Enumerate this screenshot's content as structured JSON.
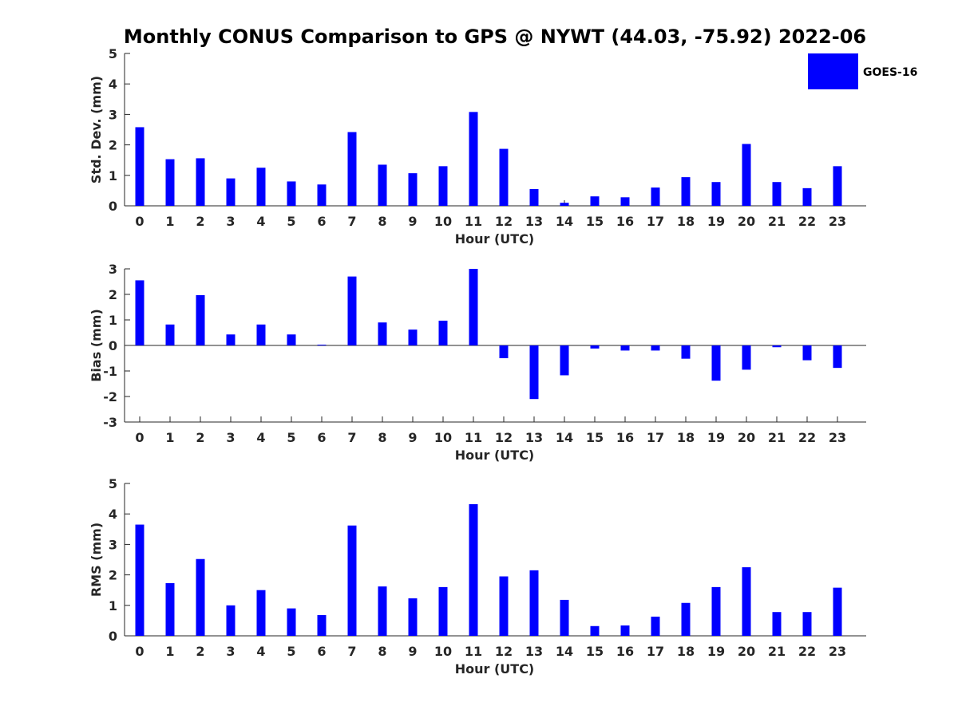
{
  "title": "Monthly CONUS Comparison to GPS @ NYWT (44.03, -75.92) 2022-06",
  "colors": {
    "bar": "#0000FF",
    "axis": "#262626",
    "background": "#FFFFFF"
  },
  "legend": {
    "label": "GOES-16",
    "placement": "top-right"
  },
  "chart_data": [
    {
      "type": "bar",
      "title": "",
      "xlabel": "Hour (UTC)",
      "ylabel": "Std. Dev. (mm)",
      "categories": [
        "0",
        "1",
        "2",
        "3",
        "4",
        "5",
        "6",
        "7",
        "8",
        "9",
        "10",
        "11",
        "12",
        "13",
        "14",
        "15",
        "16",
        "17",
        "18",
        "19",
        "20",
        "21",
        "22",
        "23"
      ],
      "series": [
        {
          "name": "GOES-16",
          "values": [
            2.58,
            1.53,
            1.56,
            0.9,
            1.25,
            0.8,
            0.7,
            2.42,
            1.35,
            1.07,
            1.3,
            3.08,
            1.87,
            0.55,
            0.1,
            0.31,
            0.28,
            0.6,
            0.94,
            0.78,
            2.03,
            0.78,
            0.58,
            1.3
          ]
        }
      ],
      "ylim": [
        0,
        5
      ],
      "yticks": [
        "0",
        "1",
        "2",
        "3",
        "4",
        "5"
      ],
      "grid": false
    },
    {
      "type": "bar",
      "title": "",
      "xlabel": "Hour (UTC)",
      "ylabel": "Bias (mm)",
      "categories": [
        "0",
        "1",
        "2",
        "3",
        "4",
        "5",
        "6",
        "7",
        "8",
        "9",
        "10",
        "11",
        "12",
        "13",
        "14",
        "15",
        "16",
        "17",
        "18",
        "19",
        "20",
        "21",
        "22",
        "23"
      ],
      "series": [
        {
          "name": "GOES-16",
          "values": [
            2.55,
            0.82,
            1.97,
            0.43,
            0.82,
            0.43,
            0.03,
            2.7,
            0.9,
            0.62,
            0.97,
            3.0,
            -0.5,
            -2.1,
            -1.17,
            -0.12,
            -0.2,
            -0.2,
            -0.52,
            -1.38,
            -0.95,
            -0.07,
            -0.58,
            -0.88
          ]
        }
      ],
      "ylim": [
        -3,
        3
      ],
      "yticks": [
        "-3",
        "-2",
        "-1",
        "0",
        "1",
        "2",
        "3"
      ],
      "grid": false
    },
    {
      "type": "bar",
      "title": "",
      "xlabel": "Hour (UTC)",
      "ylabel": "RMS (mm)",
      "categories": [
        "0",
        "1",
        "2",
        "3",
        "4",
        "5",
        "6",
        "7",
        "8",
        "9",
        "10",
        "11",
        "12",
        "13",
        "14",
        "15",
        "16",
        "17",
        "18",
        "19",
        "20",
        "21",
        "22",
        "23"
      ],
      "series": [
        {
          "name": "GOES-16",
          "values": [
            3.65,
            1.73,
            2.52,
            1.0,
            1.5,
            0.9,
            0.68,
            3.62,
            1.62,
            1.23,
            1.6,
            4.32,
            1.95,
            2.15,
            1.18,
            0.32,
            0.34,
            0.63,
            1.08,
            1.6,
            2.25,
            0.78,
            0.78,
            1.58
          ]
        }
      ],
      "ylim": [
        0,
        5
      ],
      "yticks": [
        "0",
        "1",
        "2",
        "3",
        "4",
        "5"
      ],
      "grid": false
    }
  ]
}
